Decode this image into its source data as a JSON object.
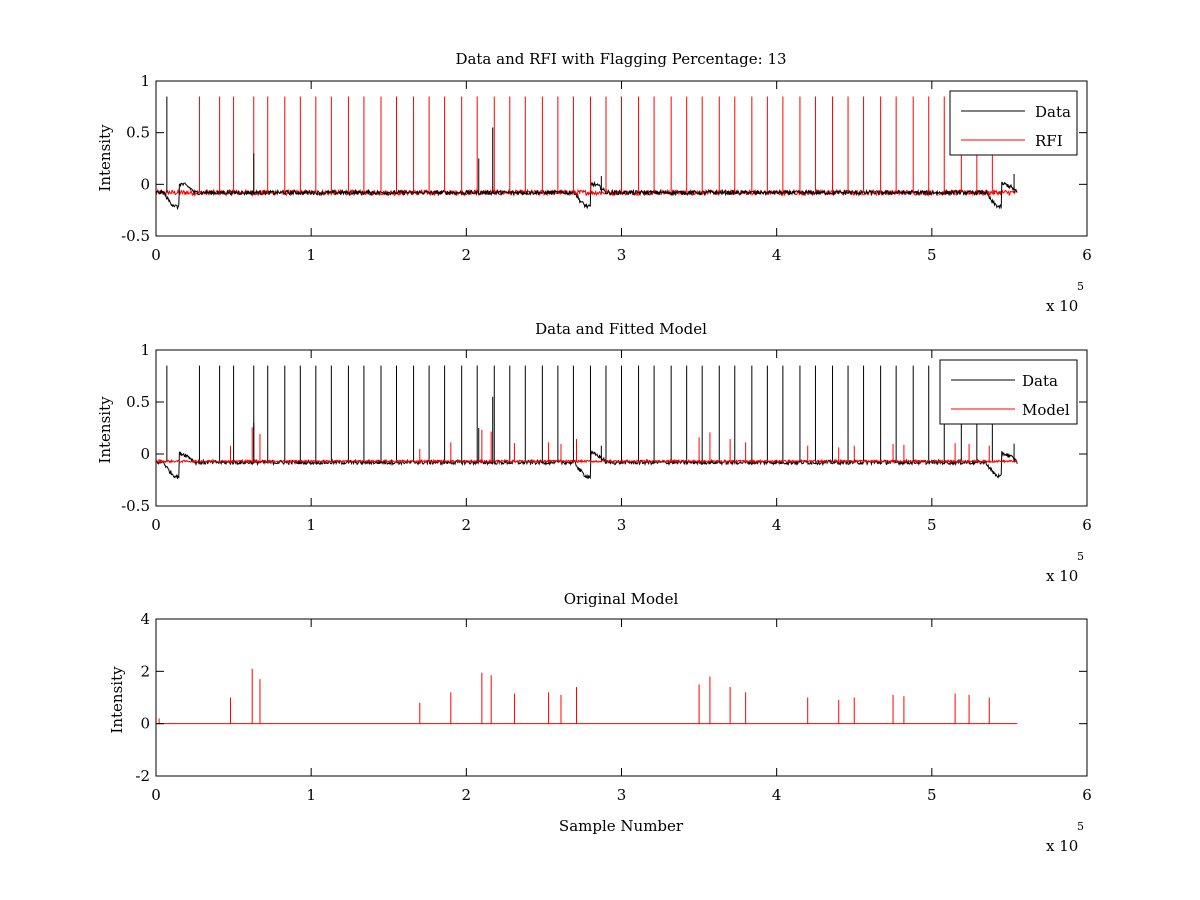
{
  "colors": {
    "data": "#000000",
    "rfi": "#ff0000",
    "model": "#ff0000"
  },
  "chart_data": [
    {
      "type": "line",
      "title": "Data and RFI with Flagging Percentage: 13",
      "xlabel": "",
      "ylabel": "Intensity",
      "xlim": [
        0,
        6
      ],
      "ylim": [
        -0.5,
        1
      ],
      "xticks": [
        "0",
        "1",
        "2",
        "3",
        "4",
        "5",
        "6"
      ],
      "yticks": [
        "-0.5",
        "0",
        "0.5",
        "1"
      ],
      "x_multiplier": {
        "base": "x 10",
        "exponent": "5"
      },
      "legend": {
        "placement": "top-right",
        "entries": [
          "Data",
          "RFI"
        ]
      },
      "series": [
        {
          "name": "Data",
          "color": "#000000",
          "baseline": -0.08,
          "dips": [
            [
              0.15,
              -0.22
            ],
            [
              2.8,
              -0.22
            ],
            [
              5.45,
              -0.22
            ]
          ],
          "spikes": [
            [
              0.07,
              0.85
            ],
            [
              0.63,
              0.3
            ],
            [
              2.08,
              0.25
            ],
            [
              2.17,
              0.55
            ],
            [
              2.87,
              0.08
            ],
            [
              5.53,
              0.1
            ]
          ]
        },
        {
          "name": "RFI",
          "color": "#ff0000",
          "spikes": [
            [
              0.28,
              0.85
            ],
            [
              0.41,
              0.85
            ],
            [
              0.5,
              0.85
            ],
            [
              0.63,
              0.85
            ],
            [
              0.72,
              0.85
            ],
            [
              0.83,
              0.85
            ],
            [
              0.93,
              0.85
            ],
            [
              1.03,
              0.85
            ],
            [
              1.13,
              0.85
            ],
            [
              1.24,
              0.85
            ],
            [
              1.34,
              0.85
            ],
            [
              1.45,
              0.85
            ],
            [
              1.55,
              0.85
            ],
            [
              1.66,
              0.85
            ],
            [
              1.76,
              0.85
            ],
            [
              1.86,
              0.85
            ],
            [
              1.97,
              0.85
            ],
            [
              2.07,
              0.85
            ],
            [
              2.18,
              0.85
            ],
            [
              2.28,
              0.85
            ],
            [
              2.38,
              0.85
            ],
            [
              2.49,
              0.85
            ],
            [
              2.59,
              0.85
            ],
            [
              2.69,
              0.85
            ],
            [
              2.8,
              0.85
            ],
            [
              2.9,
              0.85
            ],
            [
              3.0,
              0.85
            ],
            [
              3.11,
              0.85
            ],
            [
              3.21,
              0.85
            ],
            [
              3.32,
              0.85
            ],
            [
              3.42,
              0.85
            ],
            [
              3.52,
              0.85
            ],
            [
              3.63,
              0.85
            ],
            [
              3.73,
              0.85
            ],
            [
              3.84,
              0.85
            ],
            [
              3.94,
              0.85
            ],
            [
              4.04,
              0.85
            ],
            [
              4.15,
              0.85
            ],
            [
              4.25,
              0.85
            ],
            [
              4.36,
              0.85
            ],
            [
              4.46,
              0.85
            ],
            [
              4.56,
              0.85
            ],
            [
              4.67,
              0.85
            ],
            [
              4.77,
              0.85
            ],
            [
              4.88,
              0.85
            ],
            [
              4.98,
              0.85
            ],
            [
              5.08,
              0.85
            ],
            [
              5.19,
              0.85
            ],
            [
              5.29,
              0.85
            ],
            [
              5.39,
              0.85
            ]
          ]
        }
      ]
    },
    {
      "type": "line",
      "title": "Data and Fitted Model",
      "xlabel": "",
      "ylabel": "Intensity",
      "xlim": [
        0,
        6
      ],
      "ylim": [
        -0.5,
        1
      ],
      "xticks": [
        "0",
        "1",
        "2",
        "3",
        "4",
        "5",
        "6"
      ],
      "yticks": [
        "-0.5",
        "0",
        "0.5",
        "1"
      ],
      "x_multiplier": {
        "base": "x 10",
        "exponent": "5"
      },
      "legend": {
        "placement": "top-right",
        "entries": [
          "Data",
          "Model"
        ]
      },
      "series": [
        {
          "name": "Data",
          "color": "#000000"
        },
        {
          "name": "Model",
          "color": "#ff0000"
        }
      ]
    },
    {
      "type": "line",
      "title": "Original Model",
      "xlabel": "Sample Number",
      "ylabel": "Intensity",
      "xlim": [
        0,
        6
      ],
      "ylim": [
        -2,
        4
      ],
      "xticks": [
        "0",
        "1",
        "2",
        "3",
        "4",
        "5",
        "6"
      ],
      "yticks": [
        "-2",
        "0",
        "2",
        "4"
      ],
      "x_multiplier": {
        "base": "x 10",
        "exponent": "5"
      },
      "series": [
        {
          "color": "#ff0000",
          "baseline": 0,
          "spikes": [
            [
              0.02,
              0.2
            ],
            [
              0.48,
              1.0
            ],
            [
              0.62,
              2.1
            ],
            [
              0.67,
              1.7
            ],
            [
              1.7,
              0.8
            ],
            [
              1.9,
              1.2
            ],
            [
              2.1,
              1.95
            ],
            [
              2.16,
              1.85
            ],
            [
              2.31,
              1.15
            ],
            [
              2.53,
              1.2
            ],
            [
              2.61,
              1.1
            ],
            [
              2.71,
              1.4
            ],
            [
              3.5,
              1.5
            ],
            [
              3.57,
              1.8
            ],
            [
              3.7,
              1.4
            ],
            [
              3.8,
              1.2
            ],
            [
              4.2,
              1.0
            ],
            [
              4.4,
              0.9
            ],
            [
              4.5,
              1.0
            ],
            [
              4.75,
              1.1
            ],
            [
              4.82,
              1.05
            ],
            [
              5.15,
              1.15
            ],
            [
              5.24,
              1.1
            ],
            [
              5.37,
              1.0
            ]
          ]
        }
      ]
    }
  ]
}
